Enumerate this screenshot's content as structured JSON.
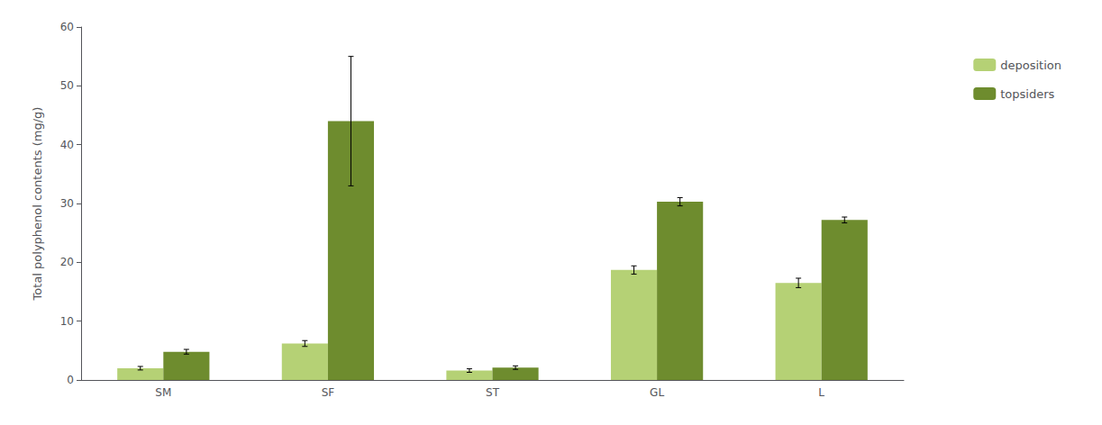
{
  "chart_data": {
    "type": "bar",
    "categories": [
      "SM",
      "SF",
      "ST",
      "GL",
      "L"
    ],
    "series": [
      {
        "name": "deposition",
        "color": "#b5d175",
        "values": [
          2.0,
          6.2,
          1.6,
          18.7,
          16.5
        ],
        "errors": [
          0.3,
          0.5,
          0.3,
          0.7,
          0.8
        ]
      },
      {
        "name": "topsiders",
        "color": "#6e8c2e",
        "values": [
          4.8,
          44.0,
          2.1,
          30.3,
          27.2
        ],
        "errors": [
          0.4,
          11.0,
          0.3,
          0.7,
          0.5
        ]
      }
    ],
    "ylabel": "Total polyphenol contents (mg/g)",
    "ylim": [
      0,
      60
    ],
    "yticks": [
      0,
      10,
      20,
      30,
      40,
      50,
      60
    ],
    "grid": false,
    "legend": "upper right"
  }
}
